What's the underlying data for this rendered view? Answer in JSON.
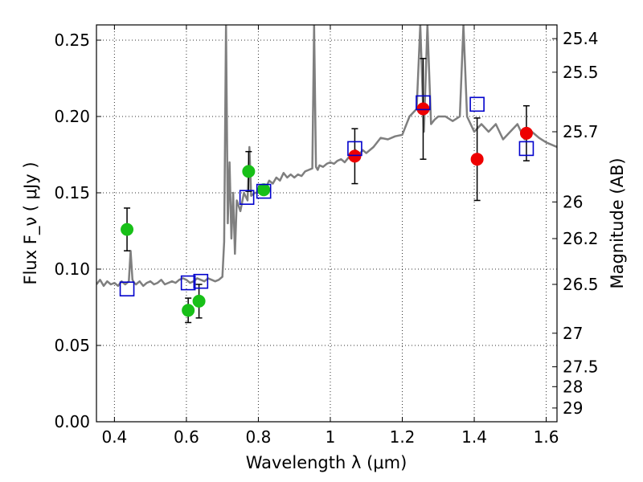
{
  "chart_data": {
    "type": "scatter",
    "title": "",
    "xlabel": "Wavelength  λ (μm)",
    "ylabel": "Flux  F_ν  ( μJy )",
    "ylabel_right": "Magnitude (AB)",
    "xlim": [
      0.35,
      1.63
    ],
    "ylim": [
      0.0,
      0.26
    ],
    "grid": true,
    "x_ticks": [
      0.4,
      0.6,
      0.8,
      1.0,
      1.2,
      1.4,
      1.6
    ],
    "x_tick_labels": [
      "0.4",
      "0.6",
      "0.8",
      "1",
      "1.2",
      "1.4",
      "1.6"
    ],
    "y_ticks": [
      0.0,
      0.05,
      0.1,
      0.15,
      0.2,
      0.25
    ],
    "y_tick_labels": [
      "0.00",
      "0.05",
      "0.10",
      "0.15",
      "0.20",
      "0.25"
    ],
    "right_ticks": [
      {
        "flux": 0.251,
        "label": "25.4"
      },
      {
        "flux": 0.229,
        "label": "25.5"
      },
      {
        "flux": 0.19,
        "label": "25.7"
      },
      {
        "flux": 0.144,
        "label": "26"
      },
      {
        "flux": 0.12,
        "label": "26.2"
      },
      {
        "flux": 0.09,
        "label": "26.5"
      },
      {
        "flux": 0.058,
        "label": "27"
      },
      {
        "flux": 0.036,
        "label": "27.5"
      },
      {
        "flux": 0.023,
        "label": "28"
      },
      {
        "flux": 0.009,
        "label": "29"
      }
    ],
    "colors": {
      "model": "#7f7f7f",
      "green": "#18c018",
      "red": "#ee0000",
      "blue": "#0000cc",
      "error_bar": "#000000"
    },
    "model_spectrum": {
      "x": [
        0.35,
        0.36,
        0.37,
        0.38,
        0.39,
        0.4,
        0.41,
        0.42,
        0.43,
        0.44,
        0.445,
        0.45,
        0.455,
        0.46,
        0.47,
        0.48,
        0.49,
        0.5,
        0.51,
        0.52,
        0.53,
        0.54,
        0.55,
        0.56,
        0.57,
        0.58,
        0.59,
        0.6,
        0.61,
        0.62,
        0.63,
        0.64,
        0.65,
        0.66,
        0.67,
        0.68,
        0.69,
        0.7,
        0.705,
        0.71,
        0.715,
        0.72,
        0.725,
        0.73,
        0.735,
        0.74,
        0.75,
        0.76,
        0.77,
        0.775,
        0.78,
        0.79,
        0.8,
        0.81,
        0.82,
        0.83,
        0.84,
        0.85,
        0.86,
        0.87,
        0.88,
        0.89,
        0.9,
        0.91,
        0.92,
        0.93,
        0.94,
        0.95,
        0.955,
        0.96,
        0.965,
        0.97,
        0.98,
        0.99,
        1.0,
        1.01,
        1.02,
        1.03,
        1.04,
        1.05,
        1.06,
        1.07,
        1.08,
        1.09,
        1.1,
        1.12,
        1.14,
        1.16,
        1.18,
        1.2,
        1.22,
        1.24,
        1.25,
        1.26,
        1.27,
        1.28,
        1.29,
        1.3,
        1.32,
        1.34,
        1.36,
        1.37,
        1.38,
        1.4,
        1.42,
        1.44,
        1.46,
        1.48,
        1.5,
        1.52,
        1.54,
        1.56,
        1.58,
        1.6,
        1.63
      ],
      "y": [
        0.09,
        0.093,
        0.089,
        0.092,
        0.09,
        0.091,
        0.089,
        0.092,
        0.09,
        0.092,
        0.112,
        0.093,
        0.091,
        0.09,
        0.092,
        0.089,
        0.091,
        0.092,
        0.09,
        0.091,
        0.093,
        0.09,
        0.091,
        0.092,
        0.091,
        0.093,
        0.094,
        0.093,
        0.091,
        0.092,
        0.094,
        0.093,
        0.092,
        0.094,
        0.093,
        0.092,
        0.093,
        0.095,
        0.118,
        0.26,
        0.13,
        0.17,
        0.12,
        0.15,
        0.11,
        0.145,
        0.138,
        0.15,
        0.145,
        0.18,
        0.148,
        0.15,
        0.15,
        0.155,
        0.153,
        0.158,
        0.156,
        0.16,
        0.158,
        0.163,
        0.16,
        0.162,
        0.16,
        0.162,
        0.161,
        0.164,
        0.165,
        0.166,
        0.26,
        0.167,
        0.165,
        0.168,
        0.167,
        0.169,
        0.17,
        0.169,
        0.171,
        0.172,
        0.17,
        0.173,
        0.172,
        0.178,
        0.175,
        0.178,
        0.176,
        0.18,
        0.186,
        0.185,
        0.187,
        0.188,
        0.2,
        0.205,
        0.26,
        0.19,
        0.26,
        0.195,
        0.198,
        0.2,
        0.2,
        0.197,
        0.2,
        0.26,
        0.2,
        0.19,
        0.195,
        0.19,
        0.195,
        0.185,
        0.19,
        0.195,
        0.185,
        0.19,
        0.186,
        0.183,
        0.18
      ]
    },
    "series": [
      {
        "color_key": "green",
        "marker": "circle",
        "x": [
          0.435,
          0.605,
          0.635,
          0.773,
          0.815
        ],
        "y": [
          0.126,
          0.073,
          0.079,
          0.164,
          0.152
        ],
        "yerr": [
          0.014,
          0.008,
          0.011,
          0.013,
          0.0
        ]
      },
      {
        "color_key": "red",
        "marker": "circle",
        "x": [
          1.068,
          1.258,
          1.408,
          1.545
        ],
        "y": [
          0.174,
          0.205,
          0.172,
          0.189
        ],
        "yerr": [
          0.018,
          0.033,
          0.027,
          0.018
        ]
      },
      {
        "color_key": "blue",
        "marker": "open-square",
        "x": [
          0.435,
          0.605,
          0.64,
          0.768,
          0.815,
          1.068,
          1.258,
          1.408,
          1.545
        ],
        "y": [
          0.087,
          0.091,
          0.092,
          0.147,
          0.151,
          0.179,
          0.209,
          0.208,
          0.179
        ],
        "yerr": []
      }
    ]
  }
}
